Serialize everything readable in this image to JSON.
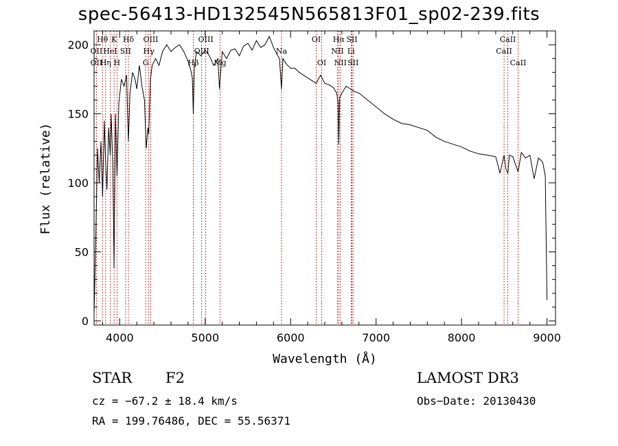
{
  "title": "spec-56413-HD132545N565813F01_sp02-239.fits",
  "chart_data": {
    "type": "line",
    "title": "spec-56413-HD132545N565813F01_sp02-239.fits",
    "xlabel": "Wavelength (Å)",
    "ylabel": "Flux (relative)",
    "xlim": [
      3700,
      9100
    ],
    "ylim": [
      -3,
      210
    ],
    "x_ticks": [
      4000,
      5000,
      6000,
      7000,
      8000,
      9000
    ],
    "x_tick_labels": [
      "4000",
      "5000",
      "6000",
      "7000",
      "8000",
      "9000"
    ],
    "y_ticks": [
      0,
      50,
      100,
      150,
      200
    ],
    "y_tick_labels": [
      "0",
      "50",
      "100",
      "150",
      "200"
    ],
    "series": [
      {
        "name": "spectrum",
        "x": [
          3700,
          3720,
          3740,
          3760,
          3780,
          3800,
          3820,
          3835,
          3850,
          3870,
          3889,
          3900,
          3920,
          3934,
          3950,
          3968,
          3990,
          4020,
          4050,
          4080,
          4102,
          4120,
          4150,
          4180,
          4200,
          4230,
          4260,
          4290,
          4310,
          4330,
          4340,
          4360,
          4380,
          4420,
          4460,
          4500,
          4550,
          4600,
          4650,
          4700,
          4750,
          4800,
          4830,
          4850,
          4861,
          4875,
          4900,
          4950,
          5000,
          5050,
          5100,
          5150,
          5167,
          5175,
          5200,
          5250,
          5300,
          5350,
          5400,
          5450,
          5500,
          5550,
          5600,
          5650,
          5700,
          5750,
          5800,
          5850,
          5870,
          5893,
          5910,
          5950,
          6000,
          6050,
          6100,
          6150,
          6200,
          6250,
          6300,
          6350,
          6400,
          6450,
          6500,
          6540,
          6555,
          6563,
          6575,
          6600,
          6650,
          6700,
          6750,
          6800,
          6900,
          7000,
          7100,
          7200,
          7300,
          7400,
          7500,
          7600,
          7700,
          7800,
          7900,
          8000,
          8100,
          8200,
          8300,
          8400,
          8450,
          8498,
          8520,
          8542,
          8560,
          8600,
          8662,
          8700,
          8750,
          8800,
          8850,
          8900,
          8950,
          8980,
          9000
        ],
        "y": [
          5,
          60,
          125,
          100,
          130,
          90,
          145,
          115,
          95,
          140,
          120,
          150,
          110,
          38,
          150,
          105,
          158,
          175,
          170,
          178,
          130,
          165,
          180,
          175,
          168,
          185,
          170,
          160,
          125,
          140,
          135,
          175,
          185,
          190,
          185,
          195,
          200,
          195,
          198,
          200,
          195,
          188,
          182,
          176,
          150,
          185,
          195,
          192,
          196,
          192,
          185,
          190,
          168,
          175,
          195,
          190,
          196,
          197,
          192,
          199,
          201,
          196,
          203,
          198,
          200,
          206,
          198,
          192,
          190,
          168,
          190,
          186,
          183,
          183,
          180,
          178,
          176,
          174,
          172,
          178,
          172,
          171,
          169,
          165,
          158,
          128,
          162,
          165,
          170,
          168,
          166,
          165,
          160,
          155,
          150,
          146,
          143,
          142,
          140,
          138,
          133,
          130,
          128,
          126,
          123,
          121,
          120,
          119,
          107,
          120,
          110,
          107,
          120,
          119,
          108,
          122,
          118,
          120,
          103,
          118,
          115,
          105,
          15
        ]
      }
    ],
    "lines": [
      {
        "label": "Hθ",
        "wave": 3798,
        "row": 1
      },
      {
        "label": "OII",
        "wave": 3727,
        "row": 2
      },
      {
        "label": "OII",
        "wave": 3727,
        "row": 3
      },
      {
        "label": "K",
        "wave": 3934,
        "row": 1
      },
      {
        "label": "HeI",
        "wave": 3889,
        "row": 2
      },
      {
        "label": "Hη",
        "wave": 3835,
        "row": 3
      },
      {
        "label": "Hδ",
        "wave": 4102,
        "row": 1
      },
      {
        "label": "SII",
        "wave": 4069,
        "row": 2
      },
      {
        "label": "H",
        "wave": 3968,
        "row": 3
      },
      {
        "label": "OIII",
        "wave": 4363,
        "row": 1
      },
      {
        "label": "Hγ",
        "wave": 4340,
        "row": 2
      },
      {
        "label": "G",
        "wave": 4304,
        "row": 3
      },
      {
        "label": "OIII",
        "wave": 5007,
        "row": 1
      },
      {
        "label": "OIII",
        "wave": 4959,
        "row": 2
      },
      {
        "label": "Hβ",
        "wave": 4861,
        "row": 3
      },
      {
        "label": "Mg",
        "wave": 5175,
        "row": 3
      },
      {
        "label": "Na",
        "wave": 5893,
        "row": 2
      },
      {
        "label": "OI",
        "wave": 6300,
        "row": 1
      },
      {
        "label": "OI",
        "wave": 6364,
        "row": 3
      },
      {
        "label": "Hα",
        "wave": 6563,
        "row": 1
      },
      {
        "label": "NII",
        "wave": 6548,
        "row": 2
      },
      {
        "label": "NII",
        "wave": 6583,
        "row": 3
      },
      {
        "label": "SII",
        "wave": 6717,
        "row": 1
      },
      {
        "label": "Li",
        "wave": 6708,
        "row": 2
      },
      {
        "label": "SII",
        "wave": 6731,
        "row": 3
      },
      {
        "label": "CaII",
        "wave": 8542,
        "row": 1
      },
      {
        "label": "CaII",
        "wave": 8498,
        "row": 2
      },
      {
        "label": "CaII",
        "wave": 8662,
        "row": 3
      }
    ]
  },
  "info": {
    "class": "STAR",
    "subclass": "F2",
    "survey": "LAMOST DR3",
    "cz": "cz = −67.2 ± 18.4 km/s",
    "obs_date": "Obs−Date: 20130430",
    "radec": "RA = 199.76486, DEC =  55.56371"
  },
  "colors": {
    "spectrum": "#000000",
    "line_marker": "#c00000",
    "axis": "#000000"
  }
}
